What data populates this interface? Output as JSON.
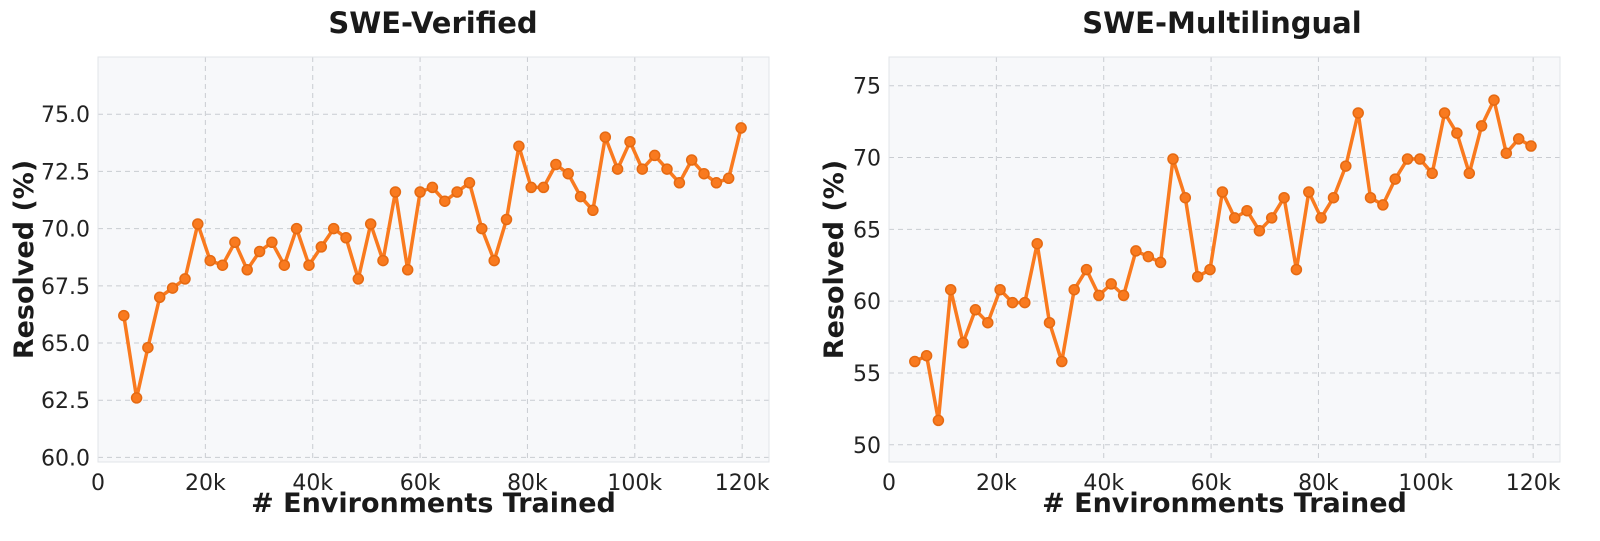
{
  "colors": {
    "series": "#f97a1f",
    "plot_bg": "#f7f8fa",
    "grid": "#c9ccd1"
  },
  "chart_data": [
    {
      "type": "line",
      "title": "SWE-Verified",
      "xlabel": "# Environments Trained",
      "ylabel": "Resolved (%)",
      "xlim": [
        0,
        125000
      ],
      "ylim": [
        59.8,
        77.5
      ],
      "x_ticks": [
        0,
        20000,
        40000,
        60000,
        80000,
        100000,
        120000
      ],
      "x_tick_labels": [
        "0",
        "20k",
        "40k",
        "60k",
        "80k",
        "100k",
        "120k"
      ],
      "y_ticks": [
        60,
        62.5,
        65,
        67.5,
        70,
        72.5,
        75
      ],
      "y_tick_labels": [
        "60.0",
        "62.5",
        "65.0",
        "67.5",
        "70.0",
        "72.5",
        "75.0"
      ],
      "grid": true,
      "series": [
        {
          "x": [
            4800,
            7200,
            9300,
            11500,
            13900,
            16200,
            18600,
            20900,
            23200,
            25500,
            27800,
            30100,
            32400,
            34700,
            37000,
            39300,
            41600,
            43900,
            46200,
            48500,
            50800,
            53100,
            55400,
            57700,
            60000,
            62300,
            64600,
            66900,
            69200,
            71500,
            73800,
            76100,
            78400,
            80700,
            83000,
            85300,
            87600,
            89900,
            92200,
            94500,
            96800,
            99100,
            101400,
            103700,
            106000,
            108300,
            110600,
            112900,
            115200,
            117500,
            119800
          ],
          "y": [
            66.2,
            62.6,
            64.8,
            67.0,
            67.4,
            67.8,
            70.2,
            68.6,
            68.4,
            69.4,
            68.2,
            69.0,
            69.4,
            68.4,
            70.0,
            68.4,
            69.2,
            70.0,
            69.6,
            67.8,
            70.2,
            68.6,
            71.6,
            68.2,
            71.6,
            71.8,
            71.2,
            71.6,
            72.0,
            70.0,
            68.6,
            70.4,
            73.6,
            71.8,
            71.8,
            72.8,
            72.4,
            71.4,
            70.8,
            74.0,
            72.6,
            73.8,
            72.6,
            73.2,
            72.6,
            72.0,
            73.0,
            72.4,
            72.0,
            72.2,
            74.4
          ]
        }
      ]
    },
    {
      "type": "line",
      "title": "SWE-Multilingual",
      "xlabel": "# Environments Trained",
      "ylabel": "Resolved (%)",
      "xlim": [
        0,
        125000
      ],
      "ylim": [
        48.8,
        77.0
      ],
      "x_ticks": [
        0,
        20000,
        40000,
        60000,
        80000,
        100000,
        120000
      ],
      "x_tick_labels": [
        "0",
        "20k",
        "40k",
        "60k",
        "80k",
        "100k",
        "120k"
      ],
      "y_ticks": [
        50,
        55,
        60,
        65,
        70,
        75
      ],
      "y_tick_labels": [
        "50",
        "55",
        "60",
        "65",
        "70",
        "75"
      ],
      "grid": true,
      "series": [
        {
          "x": [
            4800,
            7000,
            9200,
            11500,
            13800,
            16100,
            18400,
            20700,
            23000,
            25300,
            27600,
            29900,
            32200,
            34500,
            36800,
            39100,
            41400,
            43700,
            46000,
            48300,
            50600,
            52900,
            55200,
            57500,
            59800,
            62100,
            64400,
            66700,
            69000,
            71300,
            73600,
            75900,
            78200,
            80500,
            82800,
            85100,
            87400,
            89700,
            92000,
            94300,
            96600,
            98900,
            101200,
            103500,
            105800,
            108100,
            110400,
            112700,
            115000,
            117300,
            119600
          ],
          "y": [
            55.8,
            56.2,
            51.7,
            60.8,
            57.1,
            59.4,
            58.5,
            60.8,
            59.9,
            59.9,
            64.0,
            58.5,
            55.8,
            60.8,
            62.2,
            60.4,
            61.2,
            60.4,
            63.5,
            63.1,
            62.7,
            69.9,
            67.2,
            61.7,
            62.2,
            67.6,
            65.8,
            66.3,
            64.9,
            65.8,
            67.2,
            62.2,
            67.6,
            65.8,
            67.2,
            69.4,
            73.1,
            67.2,
            66.7,
            68.5,
            69.9,
            69.9,
            68.9,
            73.1,
            71.7,
            68.9,
            72.2,
            74.0,
            70.3,
            71.3,
            70.8
          ]
        }
      ]
    }
  ]
}
